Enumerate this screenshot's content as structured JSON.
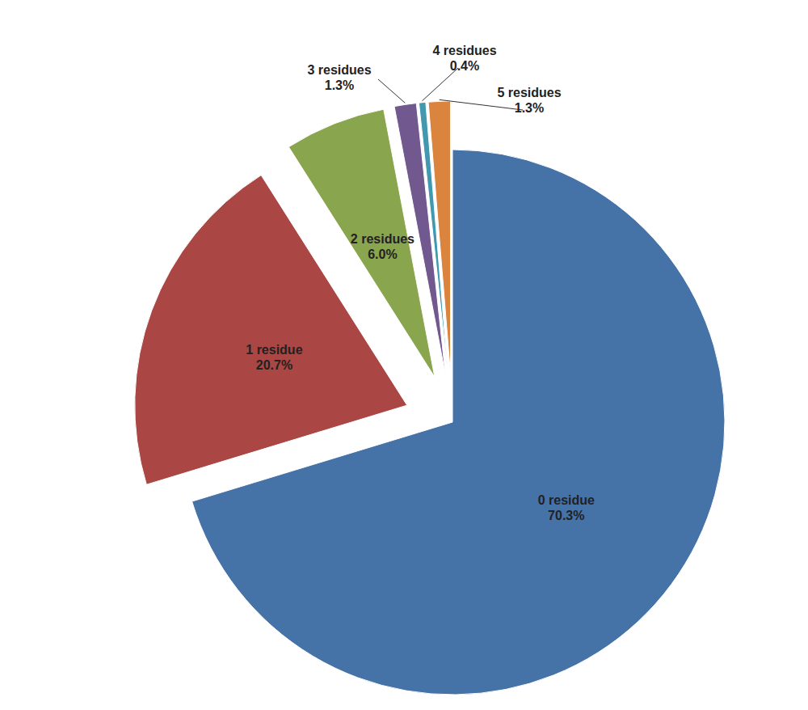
{
  "chart_data": {
    "type": "pie",
    "categories": [
      "0 residue",
      "1 residue",
      "2 residues",
      "3 residues",
      "4 residues",
      "5 residues"
    ],
    "values": [
      70.3,
      20.7,
      6.0,
      1.3,
      0.4,
      1.3
    ],
    "value_labels": [
      "70.3%",
      "20.7%",
      "6.0%",
      "1.3%",
      "0.4%",
      "1.3%"
    ],
    "colors": [
      "#4572a7",
      "#aa4643",
      "#89a54e",
      "#71588f",
      "#4198af",
      "#db843d"
    ],
    "data_labels": true
  }
}
